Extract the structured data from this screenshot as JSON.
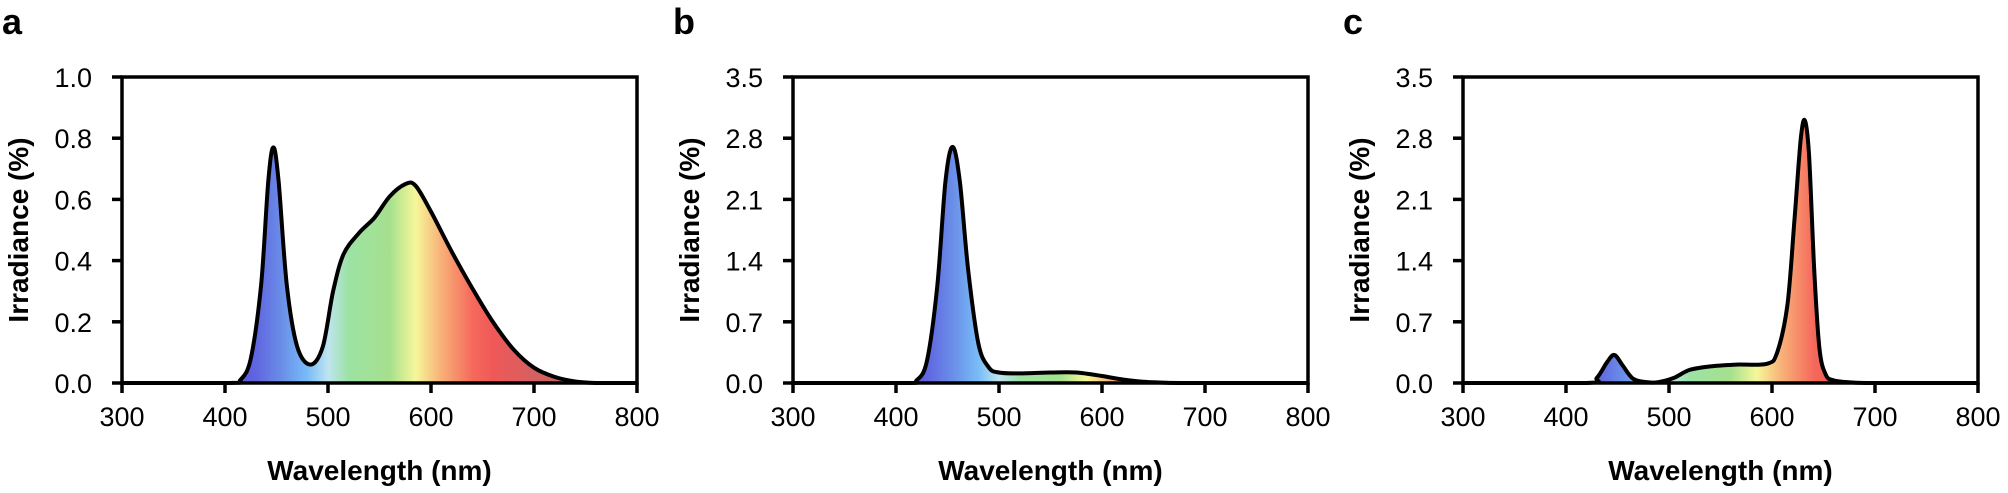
{
  "chart_data": [
    {
      "type": "area",
      "panel_label": "a",
      "xlabel": "Wavelength (nm)",
      "ylabel": "Irradiance (%)",
      "xlim": [
        300,
        800
      ],
      "ylim": [
        0,
        1.0
      ],
      "xticks": [
        "300",
        "400",
        "500",
        "600",
        "700",
        "800"
      ],
      "yticks": [
        "0.0",
        "0.2",
        "0.4",
        "0.6",
        "0.8",
        "1.0"
      ],
      "grid": false,
      "points": [
        [
          300,
          0
        ],
        [
          405,
          0
        ],
        [
          415,
          0.01
        ],
        [
          425,
          0.08
        ],
        [
          435,
          0.32
        ],
        [
          442,
          0.66
        ],
        [
          447,
          0.77
        ],
        [
          452,
          0.66
        ],
        [
          460,
          0.32
        ],
        [
          470,
          0.12
        ],
        [
          483,
          0.06
        ],
        [
          495,
          0.12
        ],
        [
          505,
          0.3
        ],
        [
          515,
          0.42
        ],
        [
          530,
          0.49
        ],
        [
          545,
          0.54
        ],
        [
          560,
          0.61
        ],
        [
          575,
          0.65
        ],
        [
          585,
          0.645
        ],
        [
          600,
          0.56
        ],
        [
          620,
          0.43
        ],
        [
          640,
          0.31
        ],
        [
          660,
          0.2
        ],
        [
          680,
          0.11
        ],
        [
          700,
          0.05
        ],
        [
          720,
          0.02
        ],
        [
          740,
          0.005
        ],
        [
          760,
          0
        ],
        [
          800,
          0
        ]
      ]
    },
    {
      "type": "area",
      "panel_label": "b",
      "xlabel": "Wavelength (nm)",
      "ylabel": "Irradiance (%)",
      "xlim": [
        300,
        800
      ],
      "ylim": [
        0,
        3.5
      ],
      "xticks": [
        "300",
        "400",
        "500",
        "600",
        "700",
        "800"
      ],
      "yticks": [
        "0.0",
        "0.7",
        "1.4",
        "2.1",
        "2.8",
        "3.5"
      ],
      "grid": false,
      "points": [
        [
          300,
          0
        ],
        [
          410,
          0
        ],
        [
          420,
          0.03
        ],
        [
          430,
          0.25
        ],
        [
          440,
          1.1
        ],
        [
          448,
          2.3
        ],
        [
          455,
          2.7
        ],
        [
          462,
          2.3
        ],
        [
          470,
          1.3
        ],
        [
          480,
          0.45
        ],
        [
          490,
          0.18
        ],
        [
          500,
          0.12
        ],
        [
          520,
          0.11
        ],
        [
          550,
          0.12
        ],
        [
          575,
          0.12
        ],
        [
          600,
          0.08
        ],
        [
          620,
          0.04
        ],
        [
          640,
          0.015
        ],
        [
          660,
          0.005
        ],
        [
          680,
          0
        ],
        [
          800,
          0
        ]
      ]
    },
    {
      "type": "area",
      "panel_label": "c",
      "xlabel": "Wavelength (nm)",
      "ylabel": "Irradiance (%)",
      "xlim": [
        300,
        800
      ],
      "ylim": [
        0,
        3.5
      ],
      "xticks": [
        "300",
        "400",
        "500",
        "600",
        "700",
        "800"
      ],
      "yticks": [
        "0.0",
        "0.7",
        "1.4",
        "2.1",
        "2.8",
        "3.5"
      ],
      "grid": false,
      "points": [
        [
          300,
          0
        ],
        [
          420,
          0
        ],
        [
          430,
          0.06
        ],
        [
          440,
          0.24
        ],
        [
          447,
          0.32
        ],
        [
          455,
          0.2
        ],
        [
          465,
          0.05
        ],
        [
          478,
          0.01
        ],
        [
          490,
          0.01
        ],
        [
          505,
          0.06
        ],
        [
          520,
          0.15
        ],
        [
          540,
          0.19
        ],
        [
          565,
          0.21
        ],
        [
          595,
          0.22
        ],
        [
          605,
          0.35
        ],
        [
          615,
          0.9
        ],
        [
          622,
          1.9
        ],
        [
          628,
          2.8
        ],
        [
          632,
          3.0
        ],
        [
          636,
          2.6
        ],
        [
          641,
          1.3
        ],
        [
          646,
          0.4
        ],
        [
          652,
          0.1
        ],
        [
          660,
          0.03
        ],
        [
          680,
          0.005
        ],
        [
          700,
          0
        ],
        [
          800,
          0
        ]
      ]
    }
  ],
  "colors": {
    "axis": "#000000",
    "spectrum_stops": [
      [
        400,
        "#5a4fd8"
      ],
      [
        430,
        "#6065e0"
      ],
      [
        455,
        "#6a8ee8"
      ],
      [
        480,
        "#78bcf8"
      ],
      [
        500,
        "#bfe4f0"
      ],
      [
        520,
        "#9ce2a4"
      ],
      [
        560,
        "#a6e08e"
      ],
      [
        585,
        "#f6f79a"
      ],
      [
        610,
        "#f8b078"
      ],
      [
        640,
        "#f56a5c"
      ],
      [
        660,
        "#f05858"
      ],
      [
        720,
        "#c86464"
      ]
    ]
  }
}
